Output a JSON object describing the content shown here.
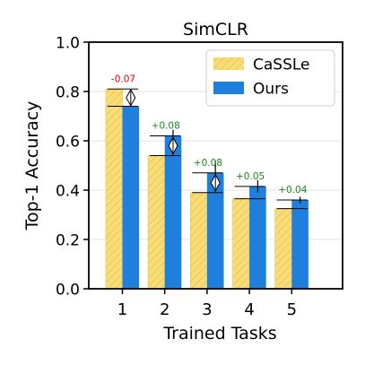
{
  "chart_data": {
    "type": "bar",
    "title": "SimCLR",
    "xlabel": "Trained Tasks",
    "ylabel": "Top-1 Accuracy",
    "categories": [
      "1",
      "2",
      "3",
      "4",
      "5"
    ],
    "ylim": [
      0,
      1.0
    ],
    "yticks": [
      "0.0",
      "0.2",
      "0.4",
      "0.6",
      "0.8",
      "1.0"
    ],
    "grid": "horizontal",
    "legend": "top-right",
    "series": [
      {
        "name": "CaSSLe",
        "values": [
          0.81,
          0.54,
          0.39,
          0.365,
          0.325
        ],
        "color": "#f7dc78",
        "hatch": "#e8c24a"
      },
      {
        "name": "Ours",
        "values": [
          0.74,
          0.62,
          0.47,
          0.415,
          0.36
        ],
        "color": "#1f7fdc"
      }
    ],
    "errors": [
      0.0,
      0.025,
      0.05,
      0.025,
      0.013
    ],
    "diff_labels": [
      "-0.07",
      "+0.08",
      "+0.08",
      "+0.05",
      "+0.04"
    ],
    "diff_colors": [
      "#e00000",
      "#1a8a1a",
      "#1a8a1a",
      "#1a8a1a",
      "#1a8a1a"
    ],
    "diff_markers": [
      true,
      true,
      true,
      false,
      false
    ]
  }
}
